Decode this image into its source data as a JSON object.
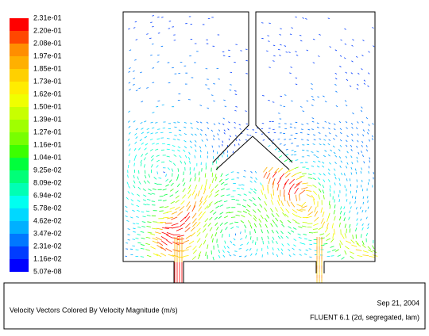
{
  "colorbar": {
    "labels": [
      "2.31e-01",
      "2.20e-01",
      "2.08e-01",
      "1.97e-01",
      "1.85e-01",
      "1.73e-01",
      "1.62e-01",
      "1.50e-01",
      "1.39e-01",
      "1.27e-01",
      "1.16e-01",
      "1.04e-01",
      "9.25e-02",
      "8.09e-02",
      "6.94e-02",
      "5.78e-02",
      "4.62e-02",
      "3.47e-02",
      "2.31e-02",
      "1.16e-02",
      "5.07e-08"
    ],
    "colors": [
      "#ff0000",
      "#ff4700",
      "#ff8e00",
      "#ffb000",
      "#ffd000",
      "#ffec00",
      "#f0ff00",
      "#c8ff00",
      "#a0ff00",
      "#78ff00",
      "#3cff00",
      "#00ff3c",
      "#00ff78",
      "#00ffb4",
      "#00fff0",
      "#00d8ff",
      "#00b0ff",
      "#0078ff",
      "#003cff",
      "#0000ff"
    ]
  },
  "caption": {
    "title": "Velocity Vectors Colored By Velocity Magnitude (m/s)",
    "date": "Sep 21, 2004",
    "software": "FLUENT 6.1 (2d, segregated, lam)"
  }
}
